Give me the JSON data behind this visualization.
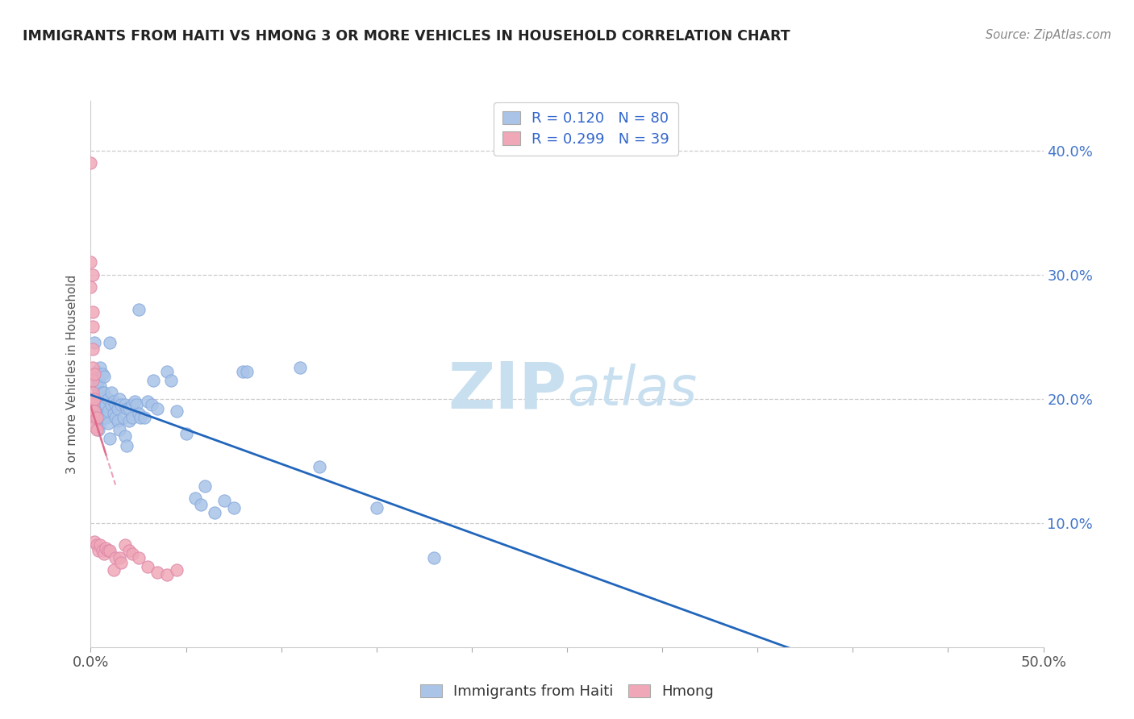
{
  "title": "IMMIGRANTS FROM HAITI VS HMONG 3 OR MORE VEHICLES IN HOUSEHOLD CORRELATION CHART",
  "source": "Source: ZipAtlas.com",
  "ylabel": "3 or more Vehicles in Household",
  "haiti_R": 0.12,
  "haiti_N": 80,
  "hmong_R": 0.299,
  "hmong_N": 39,
  "haiti_color": "#aac4e8",
  "hmong_color": "#f0a8b8",
  "haiti_line_color": "#2266bb",
  "hmong_line_color": "#dd6688",
  "haiti_marker_edge": "#88aadd",
  "hmong_marker_edge": "#dd88aa",
  "watermark_color": "#c8dff0",
  "xlim": [
    0.0,
    0.5
  ],
  "ylim": [
    0.0,
    0.44
  ],
  "haiti_points": [
    [
      0.002,
      0.245
    ],
    [
      0.002,
      0.218
    ],
    [
      0.002,
      0.2
    ],
    [
      0.002,
      0.19
    ],
    [
      0.003,
      0.222
    ],
    [
      0.003,
      0.21
    ],
    [
      0.003,
      0.2
    ],
    [
      0.003,
      0.192
    ],
    [
      0.003,
      0.182
    ],
    [
      0.004,
      0.215
    ],
    [
      0.004,
      0.205
    ],
    [
      0.004,
      0.195
    ],
    [
      0.004,
      0.185
    ],
    [
      0.004,
      0.175
    ],
    [
      0.005,
      0.225
    ],
    [
      0.005,
      0.21
    ],
    [
      0.005,
      0.2
    ],
    [
      0.005,
      0.19
    ],
    [
      0.005,
      0.18
    ],
    [
      0.006,
      0.22
    ],
    [
      0.006,
      0.205
    ],
    [
      0.006,
      0.195
    ],
    [
      0.006,
      0.185
    ],
    [
      0.007,
      0.218
    ],
    [
      0.007,
      0.205
    ],
    [
      0.007,
      0.195
    ],
    [
      0.007,
      0.185
    ],
    [
      0.008,
      0.195
    ],
    [
      0.008,
      0.185
    ],
    [
      0.009,
      0.2
    ],
    [
      0.009,
      0.19
    ],
    [
      0.009,
      0.18
    ],
    [
      0.01,
      0.245
    ],
    [
      0.01,
      0.168
    ],
    [
      0.011,
      0.205
    ],
    [
      0.011,
      0.195
    ],
    [
      0.012,
      0.198
    ],
    [
      0.012,
      0.188
    ],
    [
      0.013,
      0.195
    ],
    [
      0.013,
      0.185
    ],
    [
      0.014,
      0.192
    ],
    [
      0.014,
      0.182
    ],
    [
      0.015,
      0.2
    ],
    [
      0.015,
      0.175
    ],
    [
      0.016,
      0.195
    ],
    [
      0.017,
      0.185
    ],
    [
      0.018,
      0.195
    ],
    [
      0.018,
      0.17
    ],
    [
      0.019,
      0.192
    ],
    [
      0.019,
      0.162
    ],
    [
      0.02,
      0.192
    ],
    [
      0.02,
      0.182
    ],
    [
      0.022,
      0.195
    ],
    [
      0.022,
      0.185
    ],
    [
      0.023,
      0.198
    ],
    [
      0.024,
      0.195
    ],
    [
      0.025,
      0.272
    ],
    [
      0.025,
      0.188
    ],
    [
      0.026,
      0.185
    ],
    [
      0.028,
      0.185
    ],
    [
      0.03,
      0.198
    ],
    [
      0.032,
      0.195
    ],
    [
      0.033,
      0.215
    ],
    [
      0.035,
      0.192
    ],
    [
      0.04,
      0.222
    ],
    [
      0.042,
      0.215
    ],
    [
      0.045,
      0.19
    ],
    [
      0.05,
      0.172
    ],
    [
      0.055,
      0.12
    ],
    [
      0.058,
      0.115
    ],
    [
      0.06,
      0.13
    ],
    [
      0.065,
      0.108
    ],
    [
      0.07,
      0.118
    ],
    [
      0.075,
      0.112
    ],
    [
      0.08,
      0.222
    ],
    [
      0.082,
      0.222
    ],
    [
      0.11,
      0.225
    ],
    [
      0.12,
      0.145
    ],
    [
      0.15,
      0.112
    ],
    [
      0.18,
      0.072
    ]
  ],
  "hmong_points": [
    [
      0.0,
      0.39
    ],
    [
      0.0,
      0.31
    ],
    [
      0.0,
      0.29
    ],
    [
      0.001,
      0.3
    ],
    [
      0.001,
      0.27
    ],
    [
      0.001,
      0.258
    ],
    [
      0.001,
      0.24
    ],
    [
      0.001,
      0.225
    ],
    [
      0.001,
      0.215
    ],
    [
      0.001,
      0.205
    ],
    [
      0.001,
      0.195
    ],
    [
      0.001,
      0.185
    ],
    [
      0.002,
      0.22
    ],
    [
      0.002,
      0.2
    ],
    [
      0.002,
      0.19
    ],
    [
      0.002,
      0.178
    ],
    [
      0.002,
      0.085
    ],
    [
      0.003,
      0.185
    ],
    [
      0.003,
      0.175
    ],
    [
      0.003,
      0.082
    ],
    [
      0.004,
      0.078
    ],
    [
      0.005,
      0.082
    ],
    [
      0.006,
      0.078
    ],
    [
      0.007,
      0.075
    ],
    [
      0.008,
      0.08
    ],
    [
      0.009,
      0.078
    ],
    [
      0.01,
      0.078
    ],
    [
      0.012,
      0.062
    ],
    [
      0.013,
      0.072
    ],
    [
      0.015,
      0.072
    ],
    [
      0.016,
      0.068
    ],
    [
      0.018,
      0.082
    ],
    [
      0.02,
      0.078
    ],
    [
      0.022,
      0.075
    ],
    [
      0.025,
      0.072
    ],
    [
      0.03,
      0.065
    ],
    [
      0.035,
      0.06
    ],
    [
      0.04,
      0.058
    ],
    [
      0.045,
      0.062
    ]
  ]
}
